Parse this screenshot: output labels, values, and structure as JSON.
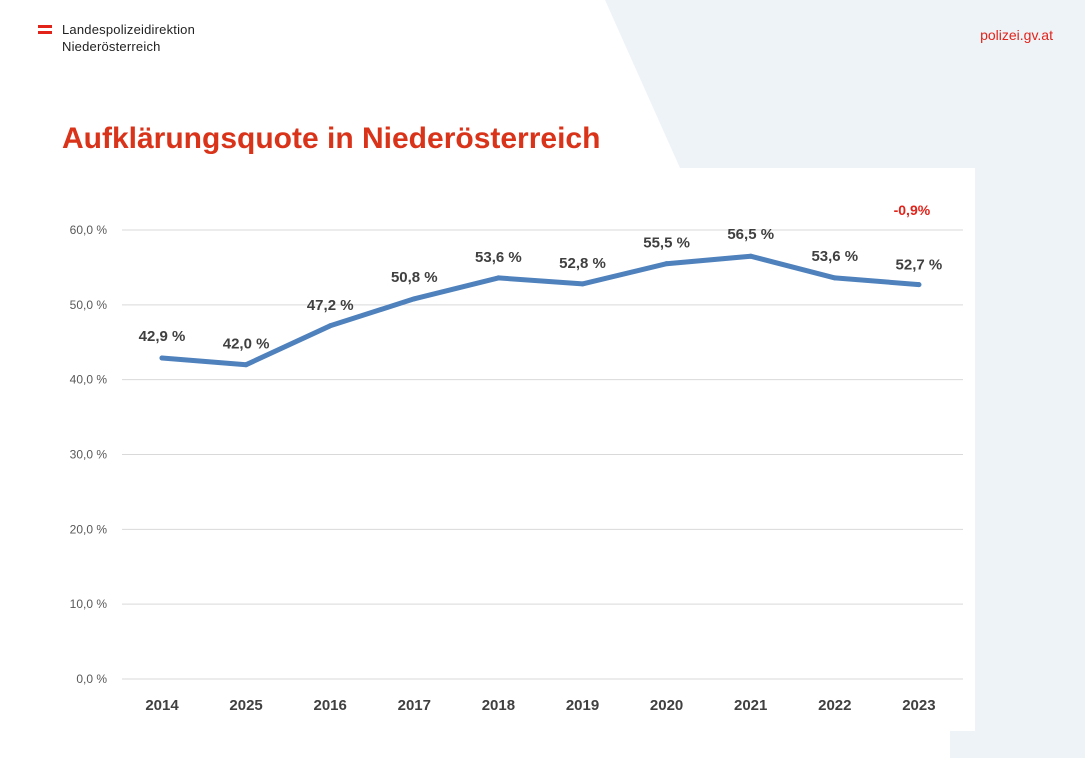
{
  "header": {
    "org_line1": "Landespolizeidirektion",
    "org_line2": "Niederösterreich",
    "url": "polizei.gv.at"
  },
  "page_title": "Aufklärungsquote in Niederösterreich",
  "colors": {
    "line": "#4f81bd",
    "accent_red": "#e2231a",
    "title_red": "#d9331a",
    "bg_shape": "#eef3f7"
  },
  "chart_data": {
    "type": "line",
    "categories": [
      "2014",
      "2025",
      "2016",
      "2017",
      "2018",
      "2019",
      "2020",
      "2021",
      "2022",
      "2023"
    ],
    "values": [
      42.9,
      42.0,
      47.2,
      50.8,
      53.6,
      52.8,
      55.5,
      56.5,
      53.6,
      52.7
    ],
    "data_labels": [
      "42,9 %",
      "42,0 %",
      "47,2 %",
      "50,8 %",
      "53,6 %",
      "52,8 %",
      "55,5 %",
      "56,5 %",
      "53,6 %",
      "52,7 %"
    ],
    "ylim": [
      0,
      60
    ],
    "yticks": [
      0,
      10,
      20,
      30,
      40,
      50,
      60
    ],
    "ytick_labels": [
      "0,0 %",
      "10,0 %",
      "20,0 %",
      "30,0 %",
      "40,0 %",
      "50,0 %",
      "60,0 %"
    ],
    "grid": true,
    "legend": "none",
    "annotation": "-0,9%",
    "title": "",
    "xlabel": "",
    "ylabel": ""
  }
}
